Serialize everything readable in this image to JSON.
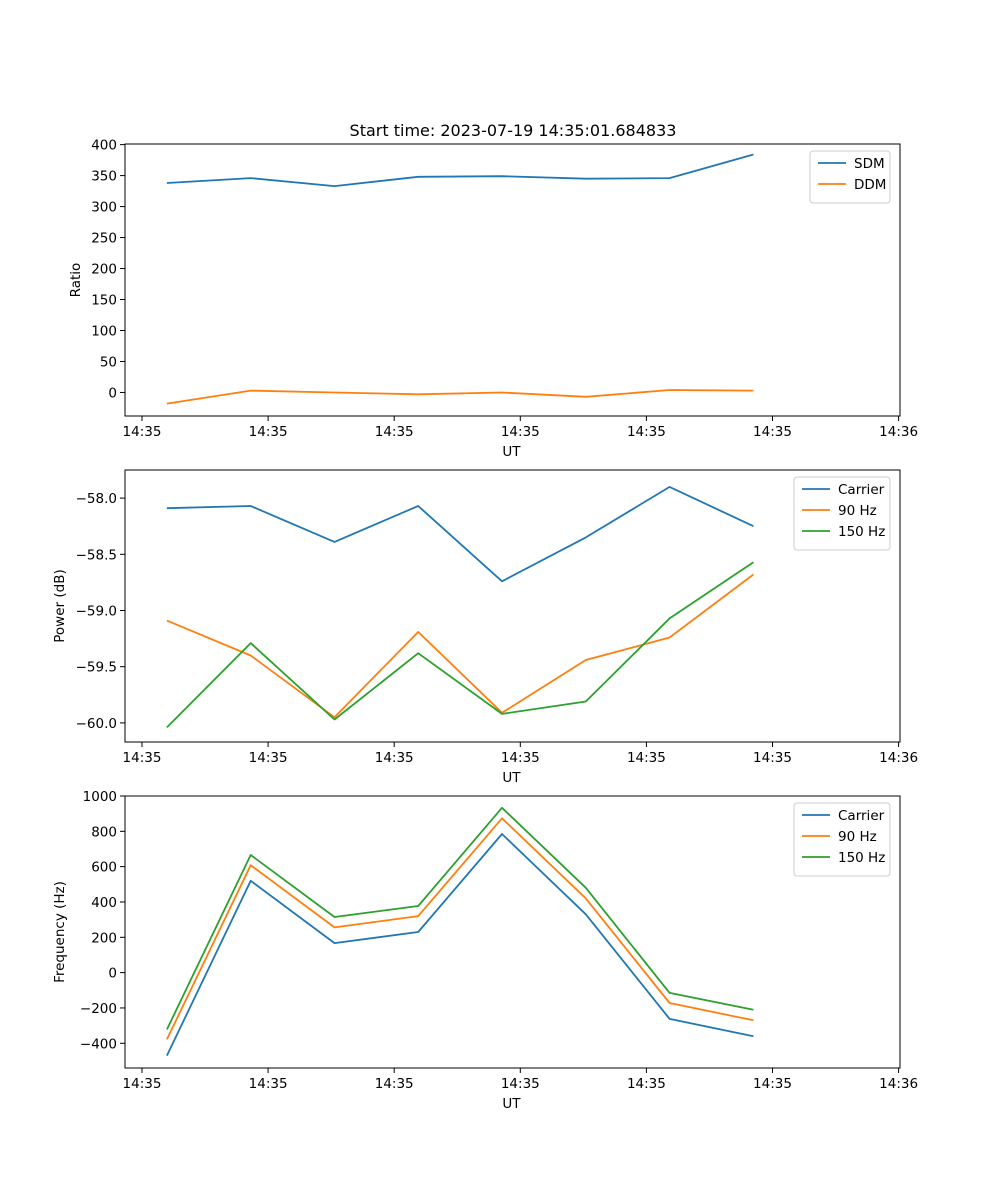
{
  "figure": {
    "title": "Start time: 2023-07-19 14:35:01.684833"
  },
  "chart_data": [
    {
      "type": "line",
      "title": "Start time: 2023-07-19 14:35:01.684833",
      "xlabel": "UT",
      "ylabel": "Ratio",
      "x_tick_labels": [
        "14:35",
        "14:35",
        "14:35",
        "14:35",
        "14:35",
        "14:35",
        "14:36"
      ],
      "xlim": [
        -0.5,
        8.75
      ],
      "x": [
        0,
        1,
        2,
        3,
        4,
        5,
        6,
        7
      ],
      "ylim": [
        -38,
        401
      ],
      "y_ticks": [
        0,
        50,
        100,
        150,
        200,
        250,
        300,
        350,
        400
      ],
      "y_tick_labels": [
        "0",
        "50",
        "100",
        "150",
        "200",
        "250",
        "300",
        "350",
        "400"
      ],
      "legend": "top-right",
      "series": [
        {
          "name": "SDM",
          "color": "#1f77b4",
          "values": [
            338,
            346,
            333,
            348,
            349,
            345,
            346,
            384
          ]
        },
        {
          "name": "DDM",
          "color": "#ff7f0e",
          "values": [
            -18,
            3,
            0,
            -3,
            0,
            -7,
            4,
            3
          ]
        }
      ]
    },
    {
      "type": "line",
      "xlabel": "UT",
      "ylabel": "Power (dB)",
      "x_tick_labels": [
        "14:35",
        "14:35",
        "14:35",
        "14:35",
        "14:35",
        "14:35",
        "14:36"
      ],
      "xlim": [
        -0.5,
        8.75
      ],
      "x": [
        0,
        1,
        2,
        3,
        4,
        5,
        6,
        7
      ],
      "ylim": [
        -60.17,
        -57.75
      ],
      "y_ticks": [
        -58.0,
        -58.5,
        -59.0,
        -59.5,
        -60.0
      ],
      "y_tick_labels": [
        "−58.0",
        "−58.5",
        "−59.0",
        "−59.5",
        "−60.0"
      ],
      "legend": "top-right",
      "series": [
        {
          "name": "Carrier",
          "color": "#1f77b4",
          "values": [
            -58.09,
            -58.07,
            -58.39,
            -58.07,
            -58.74,
            -58.35,
            -57.9,
            -58.25
          ]
        },
        {
          "name": "90 Hz",
          "color": "#ff7f0e",
          "values": [
            -59.09,
            -59.4,
            -59.95,
            -59.19,
            -59.91,
            -59.44,
            -59.24,
            -58.68
          ]
        },
        {
          "name": "150 Hz",
          "color": "#2ca02c",
          "values": [
            -60.04,
            -59.29,
            -59.97,
            -59.38,
            -59.92,
            -59.81,
            -59.07,
            -58.57
          ]
        }
      ]
    },
    {
      "type": "line",
      "xlabel": "UT",
      "ylabel": "Frequency (Hz)",
      "x_tick_labels": [
        "14:35",
        "14:35",
        "14:35",
        "14:35",
        "14:35",
        "14:35",
        "14:36"
      ],
      "xlim": [
        -0.5,
        8.75
      ],
      "x": [
        0,
        1,
        2,
        3,
        4,
        5,
        6,
        7
      ],
      "ylim": [
        -540,
        1000
      ],
      "y_ticks": [
        -400,
        -200,
        0,
        200,
        400,
        600,
        800,
        1000
      ],
      "y_tick_labels": [
        "−400",
        "−200",
        "0",
        "200",
        "400",
        "600",
        "800",
        "1000"
      ],
      "legend": "top-right",
      "series": [
        {
          "name": "Carrier",
          "color": "#1f77b4",
          "values": [
            -470,
            520,
            167,
            230,
            785,
            330,
            -262,
            -360
          ]
        },
        {
          "name": "90 Hz",
          "color": "#ff7f0e",
          "values": [
            -378,
            608,
            256,
            320,
            874,
            420,
            -172,
            -270
          ]
        },
        {
          "name": "150 Hz",
          "color": "#2ca02c",
          "values": [
            -322,
            666,
            315,
            377,
            933,
            480,
            -115,
            -210
          ]
        }
      ]
    }
  ]
}
